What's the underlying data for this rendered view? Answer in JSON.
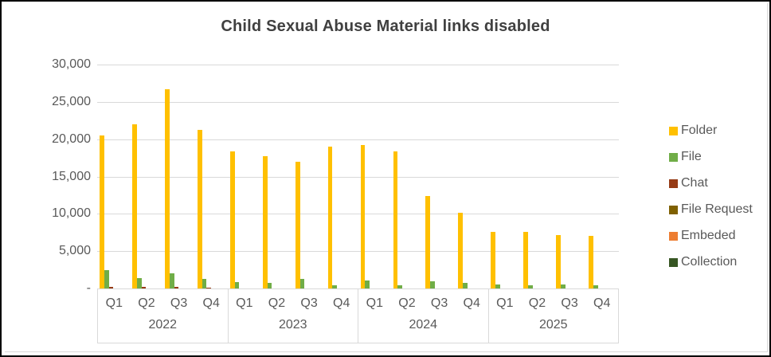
{
  "chart_data": {
    "type": "bar",
    "title": "Child Sexual Abuse Material links disabled",
    "grid": "horizontal",
    "legend_position": "right",
    "ylim": [
      0,
      30000
    ],
    "ytick_step": 5000,
    "ytick_labels": [
      "-",
      "5,000",
      "10,000",
      "15,000",
      "20,000",
      "25,000",
      "30,000"
    ],
    "years": [
      "2022",
      "2023",
      "2024",
      "2025"
    ],
    "quarters": [
      "Q1",
      "Q2",
      "Q3",
      "Q4"
    ],
    "categories": [
      "2022 Q1",
      "2022 Q2",
      "2022 Q3",
      "2022 Q4",
      "2023 Q1",
      "2023 Q2",
      "2023 Q3",
      "2023 Q4",
      "2024 Q1",
      "2024 Q2",
      "2024 Q3",
      "2024 Q4",
      "2025 Q1",
      "2025 Q2",
      "2025 Q3",
      "2025 Q4"
    ],
    "series": [
      {
        "name": "Folder",
        "color": "#FFC000",
        "values": [
          20500,
          22000,
          26700,
          21300,
          18400,
          17700,
          17000,
          19000,
          19200,
          18400,
          12400,
          10100,
          7600,
          7600,
          7200,
          7100
        ]
      },
      {
        "name": "File",
        "color": "#70AD47",
        "values": [
          2450,
          1350,
          2000,
          1250,
          900,
          700,
          1250,
          450,
          1100,
          450,
          1000,
          780,
          550,
          400,
          500,
          400
        ]
      },
      {
        "name": "Chat",
        "color": "#963B16",
        "values": [
          250,
          200,
          200,
          150,
          0,
          0,
          0,
          0,
          0,
          0,
          0,
          0,
          0,
          0,
          0,
          0
        ]
      },
      {
        "name": "File Request",
        "color": "#7F6000",
        "values": [
          0,
          0,
          0,
          0,
          0,
          0,
          0,
          0,
          0,
          0,
          0,
          0,
          0,
          0,
          0,
          0
        ]
      },
      {
        "name": "Embeded",
        "color": "#ED7D31",
        "values": [
          0,
          0,
          0,
          0,
          0,
          0,
          0,
          0,
          0,
          0,
          0,
          0,
          0,
          0,
          0,
          0
        ]
      },
      {
        "name": "Collection",
        "color": "#375623",
        "values": [
          0,
          0,
          0,
          0,
          0,
          0,
          0,
          0,
          0,
          0,
          0,
          0,
          0,
          0,
          0,
          0
        ]
      }
    ]
  }
}
